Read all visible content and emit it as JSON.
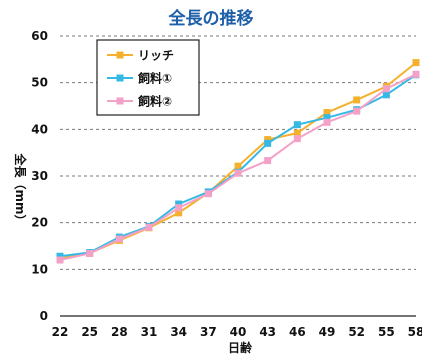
{
  "chart_data": {
    "type": "line",
    "title": "全長の推移",
    "xlabel": "日齢",
    "ylabel": "全長（mm）",
    "x": [
      22,
      25,
      28,
      31,
      34,
      37,
      40,
      43,
      46,
      49,
      52,
      55,
      58
    ],
    "ylim": [
      0,
      60
    ],
    "yticks": [
      0,
      10,
      20,
      30,
      40,
      50,
      60
    ],
    "grid": true,
    "legend_position": "top-left",
    "series": [
      {
        "name": "リッチ",
        "color": "#f5b12e",
        "values": [
          12.3,
          13.5,
          16.2,
          18.9,
          22.1,
          26.4,
          32.1,
          37.8,
          39.2,
          43.6,
          46.3,
          49.2,
          54.3
        ]
      },
      {
        "name": "飼料①",
        "color": "#35b9e4",
        "values": [
          12.8,
          13.6,
          16.9,
          19.2,
          24.0,
          26.6,
          30.8,
          37.0,
          41.0,
          42.5,
          44.2,
          47.4,
          51.7
        ]
      },
      {
        "name": "飼料②",
        "color": "#f3a1c7",
        "values": [
          12.0,
          13.4,
          16.5,
          19.0,
          23.2,
          26.2,
          30.6,
          33.3,
          38.0,
          41.5,
          43.9,
          48.7,
          51.8
        ]
      }
    ]
  }
}
